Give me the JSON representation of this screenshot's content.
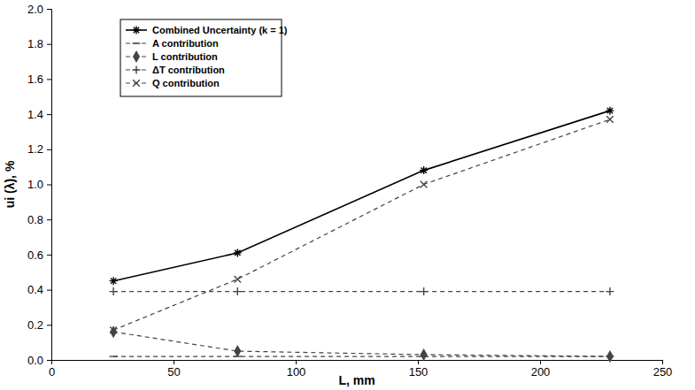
{
  "chart_data": {
    "type": "line",
    "x_label": "L, mm",
    "y_label": "ui (λ), %",
    "x": [
      25.4,
      76.2,
      152.4,
      228.6
    ],
    "xlim": [
      0,
      250
    ],
    "xticks": [
      0,
      50,
      100,
      150,
      200,
      250
    ],
    "ylim": [
      0,
      2
    ],
    "yticks": [
      {
        "value": 0,
        "label": "0.0"
      },
      0.2,
      0.4,
      0.6,
      0.8,
      {
        "value": 1,
        "label": "1.0"
      },
      1.2,
      1.4,
      1.6,
      1.8,
      {
        "value": 2,
        "label": "2.0"
      }
    ],
    "grid": false,
    "legend": "upper left",
    "series": [
      {
        "name": "Combined Uncertainty (k = 1)",
        "color": "#000000",
        "marker": "asterisk",
        "line_style": "solid",
        "values": [
          0.45,
          0.61,
          1.08,
          1.42
        ]
      },
      {
        "name": "A contribution",
        "color": "#444444",
        "marker": "dash",
        "line_style": "dashed",
        "values": [
          0.02,
          0.02,
          0.02,
          0.02
        ]
      },
      {
        "name": "L contribution",
        "color": "#444444",
        "marker": "diamond",
        "line_style": "dashed",
        "values": [
          0.16,
          0.05,
          0.03,
          0.02
        ]
      },
      {
        "name": "ΔT contribution",
        "color": "#444444",
        "marker": "plus",
        "line_style": "dashed",
        "values": [
          0.39,
          0.39,
          0.39,
          0.39
        ]
      },
      {
        "name": "Q contribution",
        "color": "#444444",
        "marker": "x",
        "line_style": "dashed",
        "values": [
          0.17,
          0.46,
          1.0,
          1.37
        ]
      }
    ]
  }
}
